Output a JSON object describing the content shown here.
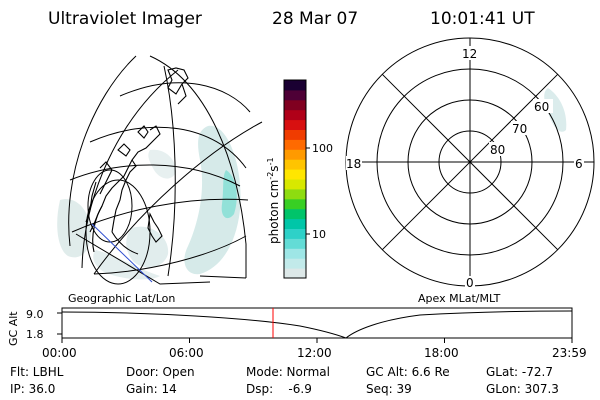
{
  "header": {
    "instrument": "Ultraviolet Imager",
    "date": "28 Mar 07",
    "time": "10:01:41 UT"
  },
  "left_panel": {
    "label": "Geographic Lat/Lon"
  },
  "right_panel": {
    "label": "Apex MLat/MLT",
    "mlt_labels": {
      "top": "12",
      "left": "18",
      "right": "6",
      "bottom": "0"
    },
    "lat_labels": [
      "60",
      "70",
      "80"
    ]
  },
  "colorbar": {
    "label": "photon cm",
    "label_exp1": "-2",
    "label_s": "s",
    "label_exp2": "-1",
    "ticks": [
      "100",
      "10"
    ],
    "colors": [
      "#dde8e8",
      "#c2eaea",
      "#9ee6e6",
      "#63dcd6",
      "#2ed1c8",
      "#00c6a8",
      "#00c46a",
      "#38cf24",
      "#8edc10",
      "#d8e800",
      "#ffe600",
      "#ffc400",
      "#ff9a00",
      "#ff6a00",
      "#f03c00",
      "#d81010",
      "#b00018",
      "#800020",
      "#4e0036",
      "#1a0032"
    ]
  },
  "timeline": {
    "ylabel": "GC Alt",
    "yticks": [
      "9.0",
      "1.8"
    ],
    "xticks": [
      "00:00",
      "06:00",
      "12:00",
      "18:00",
      "23:59"
    ],
    "current_color": "#ff0000"
  },
  "footer": {
    "col1": [
      "Flt: LBHL",
      "IP: 36.0"
    ],
    "col2": [
      "Door: Open",
      "Gain: 14"
    ],
    "col3": [
      "Mode: Normal",
      "Dsp:    -6.9"
    ],
    "col4": [
      "GC Alt: 6.6 Re",
      "Seq: 39"
    ],
    "col5": [
      "GLat: -72.7",
      "GLon: 307.3"
    ]
  }
}
